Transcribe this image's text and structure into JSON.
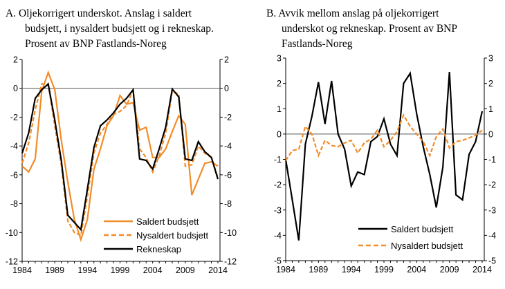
{
  "chart_data": [
    {
      "type": "line",
      "title_lines": [
        "A.  Oljekorrigert underskot. Anslag i saldert",
        "budsjett, i nysaldert budsjett og i rekneskap.",
        "Prosent av BNP Fastlands-Noreg"
      ],
      "x": [
        1984,
        1985,
        1986,
        1987,
        1988,
        1989,
        1990,
        1991,
        1992,
        1993,
        1994,
        1995,
        1996,
        1997,
        1998,
        1999,
        2000,
        2001,
        2002,
        2003,
        2004,
        2005,
        2006,
        2007,
        2008,
        2009,
        2010,
        2011,
        2012,
        2013,
        2014
      ],
      "x_ticks": [
        "1984",
        "1989",
        "1994",
        "1999",
        "2004",
        "2009",
        "2014"
      ],
      "y_ticks": [
        "2",
        "0",
        "-2",
        "-4",
        "-6",
        "-8",
        "-10",
        "-12"
      ],
      "ylim": [
        -12,
        2
      ],
      "xlim": [
        1984,
        2014
      ],
      "legend": "bottom-right",
      "series": [
        {
          "name": "Saldert budsjett",
          "color": "#f28c28",
          "style": "solid",
          "values": [
            -5.4,
            -5.8,
            -4.9,
            -0.2,
            1.1,
            -0.1,
            -3.6,
            -6.5,
            -9.1,
            -10.5,
            -9.1,
            -5.6,
            -4.2,
            -2.6,
            -1.9,
            -0.5,
            -1.1,
            -1.0,
            -2.9,
            -2.7,
            -4.8,
            -4.8,
            -4.2,
            -3.0,
            -1.9,
            -2.5,
            -7.4,
            -6.3,
            -5.2,
            -5.1,
            -5.4
          ]
        },
        {
          "name": "Nysaldert budsjett",
          "color": "#f28c28",
          "style": "dashed",
          "values": [
            -5.2,
            -3.8,
            -1.5,
            0.3,
            0.3,
            -2.6,
            -5.3,
            -9.2,
            -10.0,
            -10.2,
            -7.5,
            -4.5,
            -3.1,
            -2.5,
            -1.8,
            -1.6,
            -1.2,
            -0.1,
            -4.2,
            -4.8,
            -5.8,
            -4.7,
            -3.1,
            -0.2,
            -0.4,
            -5.4,
            -5.3,
            -4.0,
            -4.5,
            -4.8,
            -6.2
          ]
        },
        {
          "name": "Rekneskap",
          "color": "#000000",
          "style": "solid",
          "values": [
            -4.5,
            -3.1,
            -0.7,
            -0.1,
            0.3,
            -2.2,
            -5.0,
            -8.8,
            -9.3,
            -9.8,
            -7.0,
            -4.1,
            -2.6,
            -2.2,
            -1.7,
            -1.1,
            -0.7,
            -0.1,
            -4.9,
            -5.0,
            -5.6,
            -4.2,
            -2.7,
            -0.05,
            -0.6,
            -4.9,
            -5.0,
            -3.7,
            -4.4,
            -4.8,
            -6.3
          ]
        }
      ]
    },
    {
      "type": "line",
      "title_lines": [
        "B.  Avvik mellom anslag på oljekorrigert",
        "underskot og rekneskap. Prosent av BNP",
        "Fastlands-Noreg"
      ],
      "x": [
        1984,
        1985,
        1986,
        1987,
        1988,
        1989,
        1990,
        1991,
        1992,
        1993,
        1994,
        1995,
        1996,
        1997,
        1998,
        1999,
        2000,
        2001,
        2002,
        2003,
        2004,
        2005,
        2006,
        2007,
        2008,
        2009,
        2010,
        2011,
        2012,
        2013,
        2014
      ],
      "x_ticks": [
        "1984",
        "1989",
        "1994",
        "1999",
        "2004",
        "2009",
        "2014"
      ],
      "y_ticks": [
        "3",
        "2",
        "1",
        "0",
        "-1",
        "-2",
        "-3",
        "-4",
        "-5"
      ],
      "ylim": [
        -5,
        3
      ],
      "xlim": [
        1984,
        2014
      ],
      "legend": "bottom-right",
      "series": [
        {
          "name": "Saldert budsjett",
          "color": "#000000",
          "style": "solid",
          "values": [
            -1.0,
            -2.6,
            -4.2,
            -0.4,
            0.7,
            2.05,
            0.4,
            2.1,
            0.0,
            -0.6,
            -2.05,
            -1.5,
            -1.6,
            -0.3,
            -0.1,
            0.6,
            -0.4,
            -0.85,
            2.0,
            2.4,
            0.8,
            -0.5,
            -1.6,
            -2.9,
            -1.3,
            2.45,
            -2.4,
            -2.6,
            -0.8,
            -0.3,
            0.9
          ]
        },
        {
          "name": "Nysaldert budsjett",
          "color": "#f28c28",
          "style": "dashed",
          "values": [
            -1.05,
            -0.65,
            -0.6,
            0.3,
            0.0,
            -0.85,
            -0.25,
            -0.45,
            -0.5,
            -0.35,
            -0.25,
            -0.75,
            -0.35,
            -0.2,
            0.15,
            -0.5,
            -0.25,
            0.1,
            0.75,
            0.3,
            0.0,
            -0.3,
            -0.85,
            -0.1,
            0.2,
            -0.55,
            -0.3,
            -0.25,
            -0.15,
            -0.05,
            0.15
          ]
        }
      ]
    }
  ]
}
